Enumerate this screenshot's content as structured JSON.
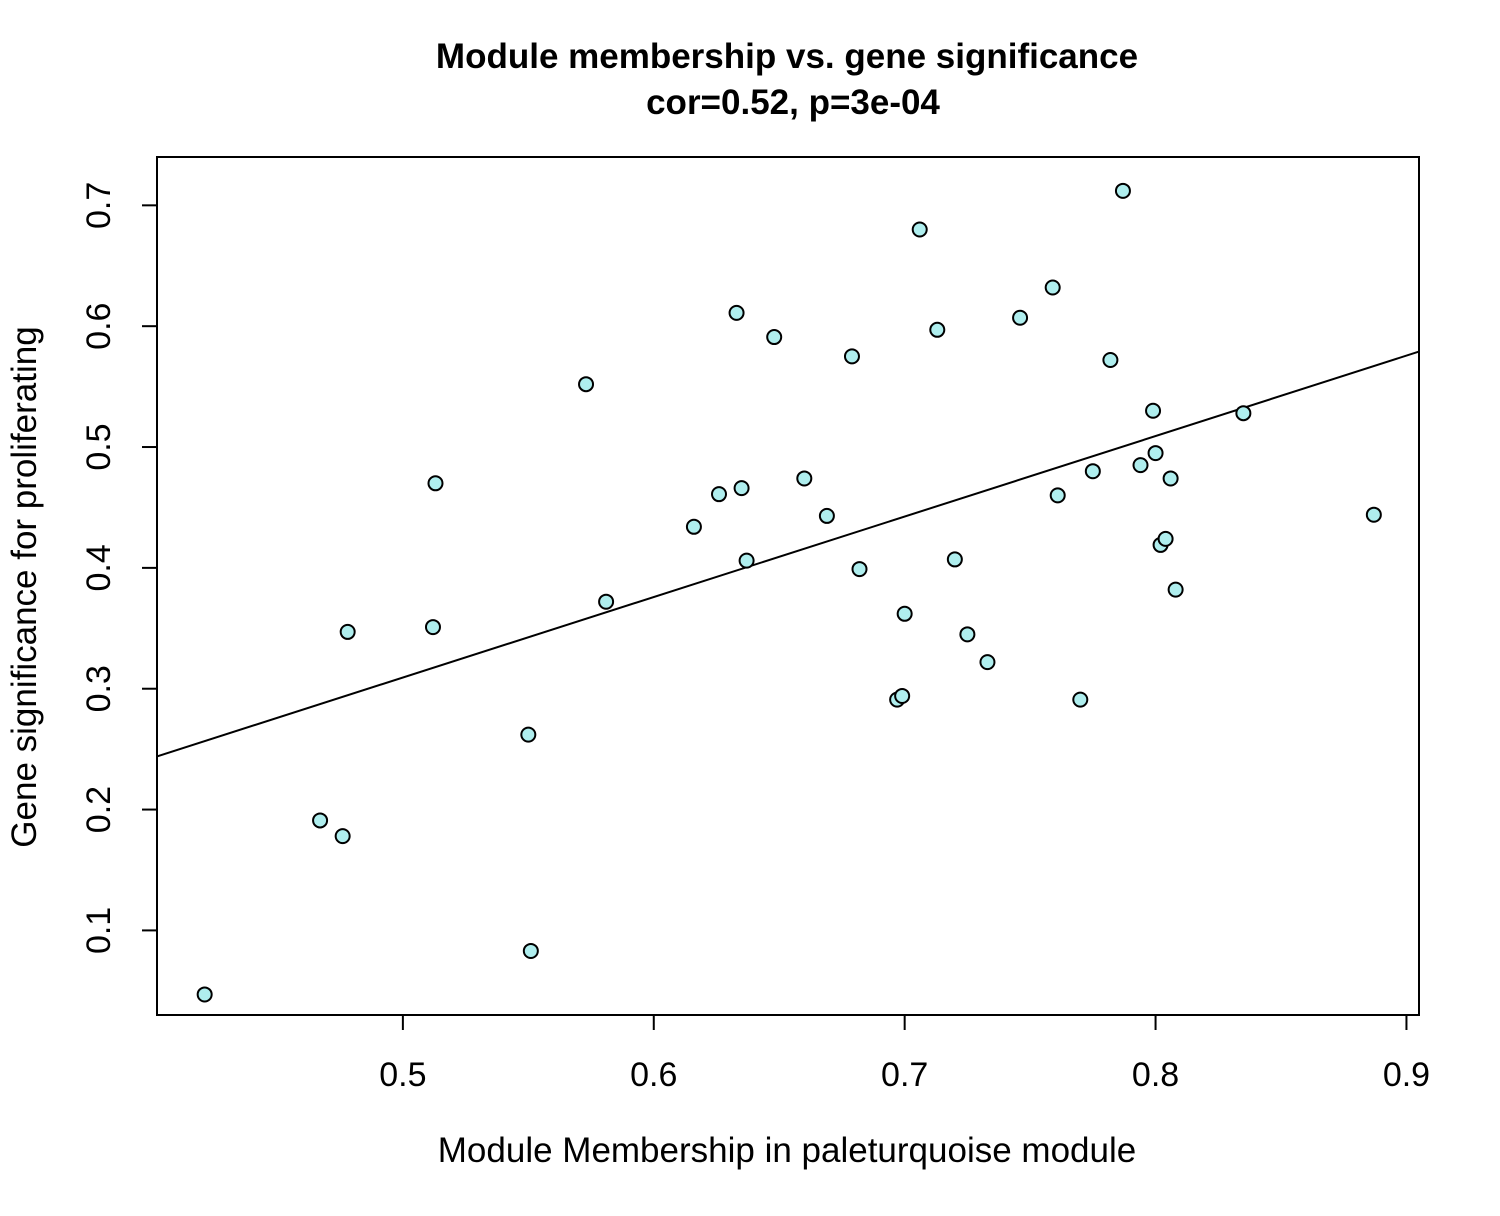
{
  "chart_data": {
    "type": "scatter",
    "title": "Module membership vs. gene significance",
    "subtitle": "cor=0.52, p=3e-04",
    "xlabel": "Module Membership in paleturquoise module",
    "ylabel": "Gene significance for proliferating",
    "xlim": [
      0.402,
      0.905
    ],
    "ylim": [
      0.03,
      0.74
    ],
    "x_ticks": [
      0.5,
      0.6,
      0.7,
      0.8,
      0.9
    ],
    "x_tick_labels": [
      "0.5",
      "0.6",
      "0.7",
      "0.8",
      "0.9"
    ],
    "y_ticks": [
      0.1,
      0.2,
      0.3,
      0.4,
      0.5,
      0.6,
      0.7
    ],
    "y_tick_labels": [
      "0.1",
      "0.2",
      "0.3",
      "0.4",
      "0.5",
      "0.6",
      "0.7"
    ],
    "grid": false,
    "legend": "none",
    "point_color": "#AFEEEE",
    "point_edge_color": "#000000",
    "regression_line": {
      "points": [
        [
          0.402,
          0.244
        ],
        [
          0.905,
          0.579
        ]
      ]
    },
    "series": [
      {
        "x": [
          0.421,
          0.467,
          0.476,
          0.478,
          0.512,
          0.513,
          0.55,
          0.551,
          0.573,
          0.581,
          0.616,
          0.626,
          0.633,
          0.635,
          0.637,
          0.648,
          0.66,
          0.669,
          0.679,
          0.682,
          0.697,
          0.699,
          0.7,
          0.706,
          0.713,
          0.72,
          0.725,
          0.733,
          0.746,
          0.759,
          0.761,
          0.77,
          0.775,
          0.782,
          0.787,
          0.794,
          0.799,
          0.8,
          0.802,
          0.804,
          0.806,
          0.808,
          0.835,
          0.887
        ],
        "y": [
          0.047,
          0.191,
          0.178,
          0.347,
          0.351,
          0.47,
          0.262,
          0.083,
          0.552,
          0.372,
          0.434,
          0.461,
          0.611,
          0.466,
          0.406,
          0.591,
          0.474,
          0.443,
          0.575,
          0.399,
          0.291,
          0.294,
          0.362,
          0.68,
          0.597,
          0.407,
          0.345,
          0.322,
          0.607,
          0.632,
          0.46,
          0.291,
          0.48,
          0.572,
          0.712,
          0.485,
          0.53,
          0.495,
          0.419,
          0.424,
          0.474,
          0.382,
          0.528,
          0.444
        ]
      }
    ]
  }
}
